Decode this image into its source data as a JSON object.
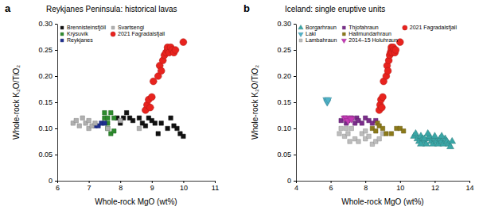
{
  "chart_data": [
    {
      "type": "scatter",
      "panel_label": "a",
      "title": "Reykjanes Peninsula: historical lavas",
      "x_label": "Whole-rock MgO (wt%)",
      "y_label": "Whole-rock K₂O/TiO₂",
      "xlim": [
        6,
        11
      ],
      "xticks": [
        6,
        7,
        8,
        9,
        10,
        11
      ],
      "ylim": [
        0,
        0.3
      ],
      "yticks": [
        0,
        0.05,
        {
          "value": 0.1,
          "label": "0.10"
        },
        0.15,
        {
          "value": 0.2,
          "label": "0.20"
        },
        0.25,
        {
          "value": 0.3,
          "label": "0.30"
        }
      ],
      "grid": false,
      "legend": "top-left",
      "series": [
        {
          "name": "Brennisteinsfjöll",
          "color": "#111111",
          "marker": "square",
          "x": [
            7.9,
            8.0,
            8.1,
            8.2,
            8.3,
            8.4,
            8.6,
            8.7,
            8.8,
            8.9,
            9.0,
            9.1,
            9.3,
            9.5,
            9.6,
            9.7,
            9.8,
            9.9,
            10.0,
            9.2
          ],
          "values": [
            0.12,
            0.11,
            0.12,
            0.13,
            0.12,
            0.115,
            0.12,
            0.11,
            0.105,
            0.12,
            0.115,
            0.11,
            0.11,
            0.1,
            0.12,
            0.105,
            0.1,
            0.09,
            0.085,
            0.09
          ]
        },
        {
          "name": "Krýsuvík",
          "color": "#2e8b2e",
          "marker": "square",
          "x": [
            7.5,
            7.5,
            7.6,
            7.6,
            7.6,
            7.7,
            7.7,
            7.8,
            7.8
          ],
          "values": [
            0.13,
            0.12,
            0.12,
            0.1,
            0.11,
            0.09,
            0.13,
            0.12,
            0.095
          ]
        },
        {
          "name": "Reykjanes",
          "color": "#1f2f8f",
          "marker": "square",
          "x": [
            7.2,
            7.3,
            7.4,
            7.5
          ],
          "values": [
            0.105,
            0.105,
            0.11,
            0.11
          ]
        },
        {
          "name": "Svartsengi",
          "color": "#b0b0b0",
          "marker": "square",
          "x": [
            6.5,
            6.6,
            6.7,
            6.8,
            6.9,
            7.0,
            7.0,
            7.1,
            7.2,
            7.6,
            8.0,
            8.6
          ],
          "values": [
            0.11,
            0.115,
            0.105,
            0.12,
            0.11,
            0.115,
            0.1,
            0.105,
            0.11,
            0.1,
            0.115,
            0.1
          ]
        },
        {
          "name": "2021 Fagradalsfjall",
          "color": "#e8231e",
          "marker": "circle",
          "x": [
            8.8,
            8.85,
            8.9,
            8.95,
            9.0,
            9.05,
            9.2,
            9.25,
            9.3,
            9.35,
            9.4,
            9.45,
            9.5,
            9.5,
            9.55,
            9.6,
            9.65,
            9.7,
            9.75,
            10.0
          ],
          "values": [
            0.135,
            0.145,
            0.155,
            0.14,
            0.16,
            0.19,
            0.2,
            0.22,
            0.21,
            0.23,
            0.24,
            0.245,
            0.25,
            0.255,
            0.245,
            0.255,
            0.25,
            0.245,
            0.25,
            0.265
          ],
          "x_error": 0.12,
          "y_error": 0.006
        }
      ]
    },
    {
      "type": "scatter",
      "panel_label": "b",
      "title": "Iceland: single eruptive units",
      "x_label": "Whole-rock MgO (wt%)",
      "y_label": "Whole-rock K₂O/TiO₂",
      "xlim": [
        4,
        14
      ],
      "xticks": [
        4,
        6,
        8,
        10,
        12,
        14
      ],
      "ylim": [
        0,
        0.3
      ],
      "yticks": [
        0,
        0.05,
        {
          "value": 0.1,
          "label": "0.10"
        },
        0.15,
        {
          "value": 0.2,
          "label": "0.20"
        },
        0.25,
        {
          "value": 0.3,
          "label": "0.30"
        }
      ],
      "grid": false,
      "legend": "top-left",
      "series": [
        {
          "name": "Borgarhraun",
          "color": "#3aa6a6",
          "marker": "triangle",
          "x": [
            10.8,
            10.9,
            11.0,
            11.1,
            11.2,
            11.3,
            11.4,
            11.5,
            11.6,
            11.7,
            11.8,
            11.9,
            12.0,
            12.1,
            12.2,
            12.3,
            12.4,
            12.5,
            12.6,
            12.7,
            12.8,
            12.9,
            13.0,
            11.2,
            11.6,
            12.0,
            12.4,
            11.4
          ],
          "values": [
            0.085,
            0.09,
            0.08,
            0.075,
            0.085,
            0.08,
            0.075,
            0.07,
            0.08,
            0.085,
            0.075,
            0.07,
            0.08,
            0.075,
            0.07,
            0.08,
            0.075,
            0.07,
            0.08,
            0.075,
            0.07,
            0.065,
            0.075,
            0.07,
            0.09,
            0.085,
            0.085,
            0.08
          ]
        },
        {
          "name": "Laki",
          "color": "#4fb3c9",
          "marker": "triangle-down",
          "x": [
            5.75,
            5.8,
            5.8,
            5.85
          ],
          "values": [
            0.155,
            0.15,
            0.152,
            0.155
          ]
        },
        {
          "name": "Lambahraun",
          "color": "#bdbdbd",
          "marker": "square",
          "x": [
            6.5,
            6.6,
            6.8,
            6.9,
            7.0,
            7.1,
            7.2,
            7.4,
            7.6,
            7.8,
            8.0,
            8.0,
            8.2,
            8.4,
            8.6,
            8.8,
            9.0
          ],
          "values": [
            0.09,
            0.1,
            0.085,
            0.1,
            0.09,
            0.075,
            0.1,
            0.08,
            0.075,
            0.09,
            0.08,
            0.095,
            0.085,
            0.07,
            0.075,
            0.08,
            0.09
          ]
        },
        {
          "name": "Thjofahraun",
          "color": "#7b2d8b",
          "marker": "square",
          "x": [
            6.6,
            6.8,
            6.9,
            7.0,
            7.2,
            7.4,
            7.5,
            7.6,
            7.8,
            8.0,
            8.2,
            8.4,
            8.6
          ],
          "values": [
            0.115,
            0.12,
            0.11,
            0.115,
            0.12,
            0.11,
            0.12,
            0.115,
            0.11,
            0.12,
            0.115,
            0.11,
            0.115
          ]
        },
        {
          "name": "Hallmundarhraun",
          "color": "#8c7a1a",
          "marker": "square",
          "x": [
            8.4,
            8.6,
            8.7,
            8.8,
            9.0,
            9.2,
            9.5,
            9.8,
            10.0,
            10.2
          ],
          "values": [
            0.1,
            0.095,
            0.11,
            0.105,
            0.1,
            0.09,
            0.09,
            0.1,
            0.1,
            0.095
          ]
        },
        {
          "name": "2014–15 Holuhraun",
          "color": "#c43ab6",
          "marker": "triangle-down",
          "x": [
            6.8,
            6.9,
            7.0,
            7.1,
            7.2
          ],
          "values": [
            0.12,
            0.12,
            0.115,
            0.12,
            0.118
          ]
        },
        {
          "name": "2021 Fagradalsfjall",
          "color": "#e8231e",
          "marker": "circle",
          "x": [
            8.8,
            8.85,
            8.9,
            8.95,
            9.0,
            9.05,
            9.2,
            9.25,
            9.3,
            9.35,
            9.4,
            9.45,
            9.5,
            9.5,
            9.55,
            9.6,
            9.65,
            9.7,
            9.75,
            10.0
          ],
          "values": [
            0.135,
            0.145,
            0.155,
            0.14,
            0.16,
            0.19,
            0.2,
            0.22,
            0.21,
            0.23,
            0.24,
            0.245,
            0.25,
            0.255,
            0.245,
            0.255,
            0.25,
            0.245,
            0.25,
            0.265
          ],
          "x_error": 0.12,
          "y_error": 0.006
        }
      ]
    }
  ]
}
